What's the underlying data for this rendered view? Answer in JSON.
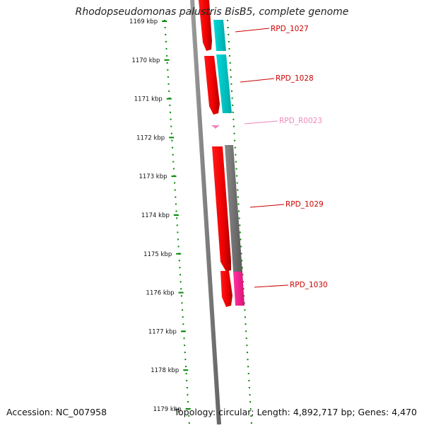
{
  "title": "Rhodopseudomonas palustris BisB5, complete genome",
  "footer": {
    "accession": "Accession: NC_007958",
    "stats": "Topology: circular; Length: 4,892,717 bp; Genes: 4,470"
  },
  "ruler_labels": [
    "1169 kbp",
    "1170 kbp",
    "1171 kbp",
    "1172 kbp",
    "1173 kbp",
    "1174 kbp",
    "1175 kbp",
    "1176 kbp",
    "1177 kbp",
    "1178 kbp",
    "1179 kbp"
  ],
  "genes": [
    {
      "label": "RPD_1027",
      "color": "#cc0000"
    },
    {
      "label": "RPD_1028",
      "color": "#cc0000"
    },
    {
      "label": "RPD_R0023",
      "color": "#ee88bb"
    },
    {
      "label": "RPD_1029",
      "color": "#cc0000"
    },
    {
      "label": "RPD_1030",
      "color": "#cc0000"
    }
  ],
  "colors": {
    "ruler_ticks": "#008800",
    "backbone": "#888888",
    "cds": "#ff0000",
    "cyan_feature": "#00cccc",
    "gray_feature": "#777777",
    "pink_feature": "#ff2288",
    "rna": "#ee88bb"
  }
}
